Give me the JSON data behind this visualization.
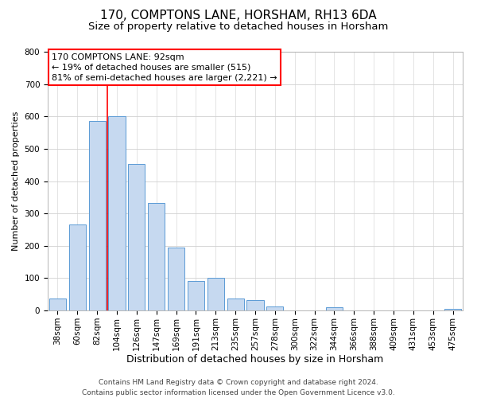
{
  "title": "170, COMPTONS LANE, HORSHAM, RH13 6DA",
  "subtitle": "Size of property relative to detached houses in Horsham",
  "xlabel": "Distribution of detached houses by size in Horsham",
  "ylabel": "Number of detached properties",
  "bar_labels": [
    "38sqm",
    "60sqm",
    "82sqm",
    "104sqm",
    "126sqm",
    "147sqm",
    "169sqm",
    "191sqm",
    "213sqm",
    "235sqm",
    "257sqm",
    "278sqm",
    "300sqm",
    "322sqm",
    "344sqm",
    "366sqm",
    "388sqm",
    "409sqm",
    "431sqm",
    "453sqm",
    "475sqm"
  ],
  "bar_values": [
    38,
    265,
    585,
    600,
    453,
    332,
    195,
    91,
    100,
    38,
    33,
    13,
    0,
    0,
    10,
    0,
    0,
    0,
    0,
    0,
    5
  ],
  "bar_color": "#c6d9f0",
  "bar_edge_color": "#5b9bd5",
  "annotation_text": "170 COMPTONS LANE: 92sqm\n← 19% of detached houses are smaller (515)\n81% of semi-detached houses are larger (2,221) →",
  "annotation_box_color": "white",
  "annotation_box_edge_color": "red",
  "red_line_color": "red",
  "ylim": [
    0,
    800
  ],
  "yticks": [
    0,
    100,
    200,
    300,
    400,
    500,
    600,
    700,
    800
  ],
  "bg_color": "white",
  "grid_color": "#d0d0d0",
  "footer_line1": "Contains HM Land Registry data © Crown copyright and database right 2024.",
  "footer_line2": "Contains public sector information licensed under the Open Government Licence v3.0.",
  "title_fontsize": 11,
  "subtitle_fontsize": 9.5,
  "xlabel_fontsize": 9,
  "ylabel_fontsize": 8,
  "tick_fontsize": 7.5,
  "footer_fontsize": 6.5
}
